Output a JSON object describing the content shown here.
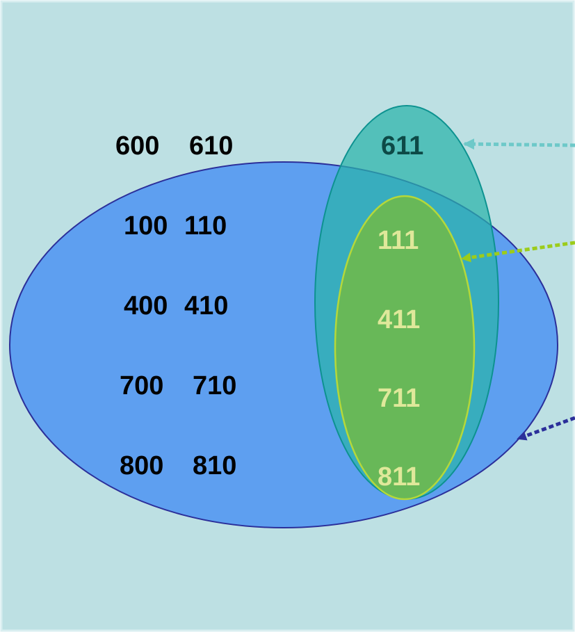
{
  "colors": {
    "background": "#bde0e3",
    "page_border": "#d9eef0",
    "outer_set_fill": "#5e9ff0",
    "outer_set_stroke": "#2b2f9a",
    "middle_set_fill": "#29b3ab",
    "middle_set_stroke": "#0d9290",
    "inner_set_fill": "#6db84f",
    "inner_set_stroke": "#b5d83a",
    "outside_label": "#000000",
    "middle_label": "#0d4a47",
    "inner_label": "#dfe89a",
    "arrow_middle": "#6ec9c9",
    "arrow_inner": "#9ccc1b",
    "arrow_outer": "#2b2f9a"
  },
  "sets": {
    "outer": {
      "labels": [
        [
          "600",
          "610"
        ],
        [
          "100",
          "110"
        ],
        [
          "400",
          "410"
        ],
        [
          "700",
          "710"
        ],
        [
          "800",
          "810"
        ]
      ]
    },
    "middle": {
      "labels": [
        "611"
      ]
    },
    "inner": {
      "labels": [
        "111",
        "411",
        "711",
        "811"
      ]
    }
  }
}
